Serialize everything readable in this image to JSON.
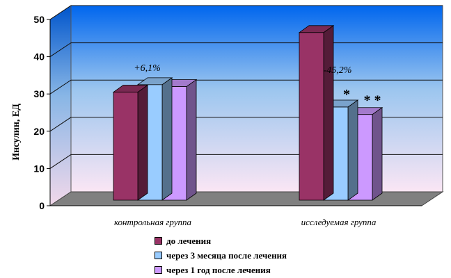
{
  "chart_data": {
    "type": "bar",
    "title": "",
    "ylabel": "Инсулин, ЕД",
    "xlabel": "",
    "ylim": [
      0,
      50
    ],
    "yticks": [
      0,
      10,
      20,
      30,
      40,
      50
    ],
    "grid": true,
    "categories": [
      "контрольная группа",
      "исследуемая группа"
    ],
    "series": [
      {
        "name": "до лечения",
        "color": "#993366",
        "values": [
          29,
          45
        ]
      },
      {
        "name": "через 3 месяца после лечения",
        "color": "#99CCFF",
        "values": [
          31,
          25
        ]
      },
      {
        "name": "через 1 год после лечения",
        "color": "#CC99FF",
        "values": [
          30.5,
          23
        ]
      }
    ],
    "annotations": [
      "+6,1%",
      "-45,2%",
      "*",
      "* *"
    ],
    "legend_position": "bottom"
  }
}
